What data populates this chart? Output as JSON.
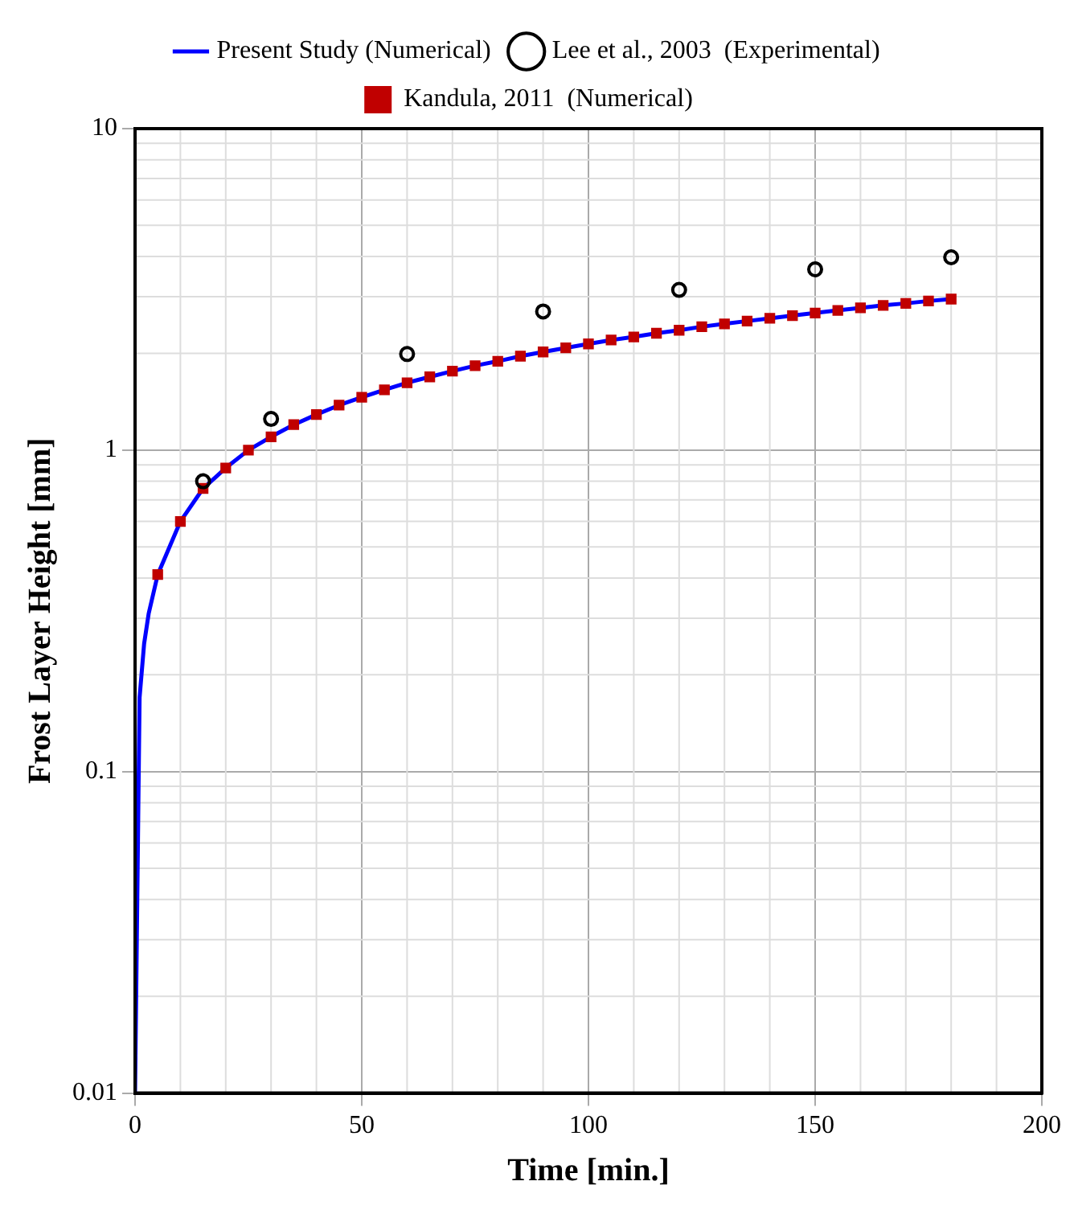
{
  "chart_data": {
    "type": "line",
    "xlabel": "Time [min.]",
    "ylabel": "Frost Layer Height [mm]",
    "log": "y",
    "xlim": [
      0,
      200
    ],
    "xticks": [
      0,
      50,
      100,
      150,
      200
    ],
    "ylim": [
      0.01,
      10
    ],
    "yticks": [
      0.01,
      0.1,
      1,
      10
    ],
    "grid": true,
    "legend": "top",
    "series": [
      {
        "name": "Present Study (Numerical)",
        "color": "#0000ff",
        "marker": "none",
        "line_style": "solid",
        "x": [
          0,
          1,
          2,
          3,
          5,
          10,
          15,
          20,
          25,
          30,
          35,
          40,
          45,
          50,
          55,
          60,
          65,
          70,
          75,
          80,
          85,
          90,
          95,
          100,
          105,
          110,
          115,
          120,
          125,
          130,
          135,
          140,
          145,
          150,
          155,
          160,
          165,
          170,
          175,
          180
        ],
        "values": [
          0.01,
          0.17,
          0.25,
          0.31,
          0.41,
          0.6,
          0.76,
          0.88,
          1.0,
          1.1,
          1.2,
          1.29,
          1.38,
          1.46,
          1.54,
          1.62,
          1.69,
          1.76,
          1.83,
          1.89,
          1.96,
          2.02,
          2.08,
          2.14,
          2.2,
          2.25,
          2.31,
          2.36,
          2.42,
          2.47,
          2.52,
          2.57,
          2.62,
          2.67,
          2.72,
          2.77,
          2.82,
          2.86,
          2.91,
          2.95
        ]
      },
      {
        "name": "Lee et al., 2003  (Experimental)",
        "type": "scatter",
        "color": "#000000",
        "marker": "circle",
        "x": [
          15,
          30,
          60,
          90,
          120,
          150,
          180
        ],
        "values": [
          0.8,
          1.25,
          1.99,
          2.7,
          3.15,
          3.65,
          3.98
        ]
      },
      {
        "name": "Kandula, 2011  (Numerical)",
        "type": "scatter",
        "color": "#c00000",
        "marker": "square",
        "x": [
          5,
          10,
          15,
          20,
          25,
          30,
          35,
          40,
          45,
          50,
          55,
          60,
          65,
          70,
          75,
          80,
          85,
          90,
          95,
          100,
          105,
          110,
          115,
          120,
          125,
          130,
          135,
          140,
          145,
          150,
          155,
          160,
          165,
          170,
          175,
          180
        ],
        "values": [
          0.41,
          0.6,
          0.76,
          0.88,
          1.0,
          1.1,
          1.2,
          1.29,
          1.38,
          1.46,
          1.54,
          1.62,
          1.69,
          1.76,
          1.83,
          1.89,
          1.96,
          2.02,
          2.08,
          2.14,
          2.2,
          2.25,
          2.31,
          2.36,
          2.42,
          2.47,
          2.52,
          2.57,
          2.62,
          2.67,
          2.72,
          2.77,
          2.82,
          2.86,
          2.91,
          2.95
        ]
      }
    ]
  }
}
